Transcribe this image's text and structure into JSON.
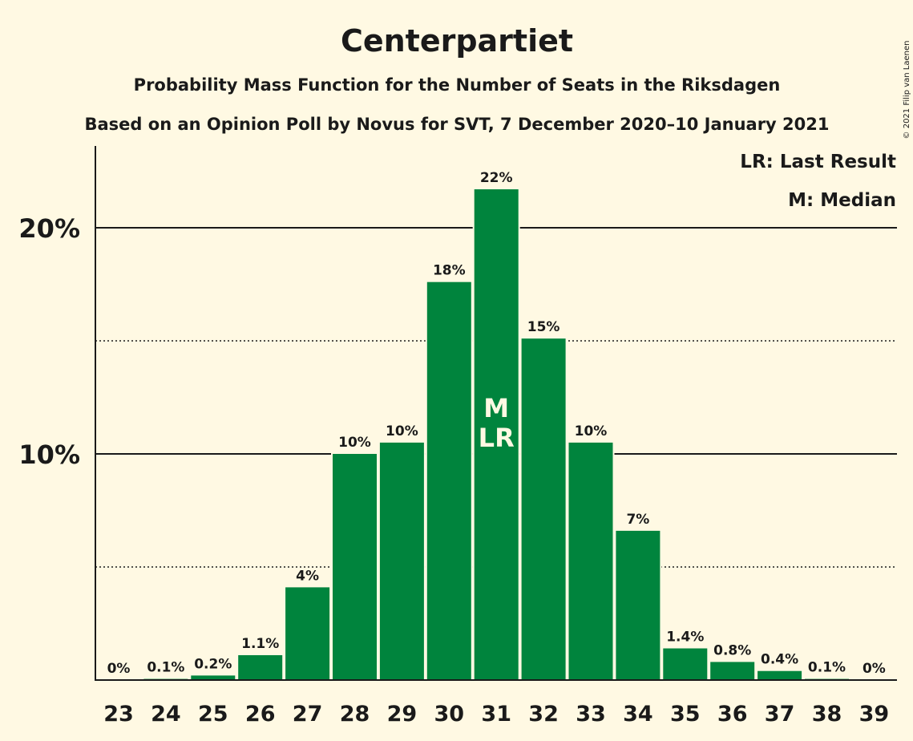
{
  "title": "Centerpartiet",
  "subtitle1": "Probability Mass Function for the Number of Seats in the Riksdagen",
  "subtitle2": "Based on an Opinion Poll by Novus for SVT, 7 December 2020–10 January 2021",
  "copyright": "© 2021 Filip van Laenen",
  "legend": {
    "lr": "LR: Last Result",
    "m": "M: Median"
  },
  "colors": {
    "background": "#FFF9E3",
    "bar": "#00843D",
    "text": "#1a1a1a"
  },
  "chart_data": {
    "type": "bar",
    "categories": [
      "23",
      "24",
      "25",
      "26",
      "27",
      "28",
      "29",
      "30",
      "31",
      "32",
      "33",
      "34",
      "35",
      "36",
      "37",
      "38",
      "39"
    ],
    "values": [
      0,
      0.05,
      0.2,
      1.1,
      4.1,
      10.0,
      10.5,
      17.6,
      21.7,
      15.1,
      10.5,
      6.6,
      1.4,
      0.8,
      0.4,
      0.05,
      0
    ],
    "data_labels": [
      "0%",
      "0.1%",
      "0.2%",
      "1.1%",
      "4%",
      "10%",
      "10%",
      "18%",
      "22%",
      "15%",
      "10%",
      "7%",
      "1.4%",
      "0.8%",
      "0.4%",
      "0.1%",
      "0%"
    ],
    "ylim": [
      0,
      22.5
    ],
    "yticks": [
      10,
      20
    ],
    "ytick_labels": [
      "10%",
      "20%"
    ],
    "minor_gridlines": [
      5,
      15
    ],
    "median_seat": "31",
    "last_result_seat": "31",
    "median_marker": "M",
    "last_result_marker": "LR",
    "legend_position": "top-right"
  }
}
